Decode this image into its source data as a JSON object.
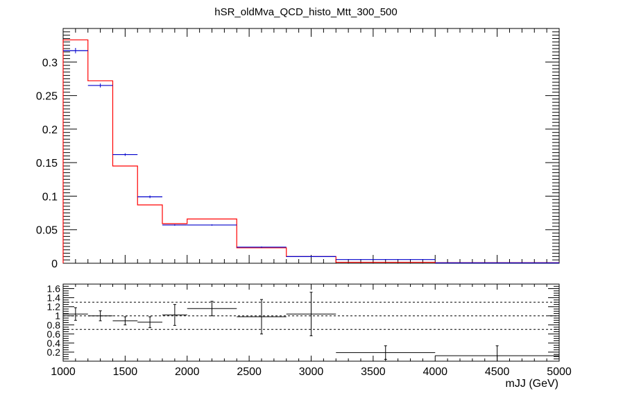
{
  "chart_data": [
    {
      "type": "histogram",
      "title": "hSR_oldMva_QCD_histo_Mtt_300_500",
      "xlim": [
        1000,
        5000
      ],
      "ylim": [
        0,
        0.35
      ],
      "ytick_labels": [
        "0",
        "0.05",
        "0.1",
        "0.15",
        "0.2",
        "0.25",
        "0.3"
      ],
      "ytick_values": [
        0,
        0.05,
        0.1,
        0.15,
        0.2,
        0.25,
        0.3
      ],
      "bin_edges": [
        1000,
        1200,
        1400,
        1600,
        1800,
        2000,
        2400,
        2800,
        3200,
        4000,
        5000
      ],
      "series": [
        {
          "color": "#ff0000",
          "style": "step",
          "values": [
            0.333,
            0.272,
            0.145,
            0.087,
            0.059,
            0.066,
            0.023,
            0.01,
            0.0015,
            0.0008
          ]
        },
        {
          "color": "#0000cc",
          "style": "points-with-xerr",
          "values": [
            0.317,
            0.265,
            0.162,
            0.099,
            0.057,
            0.057,
            0.024,
            0.01,
            0.0055,
            0.0005
          ],
          "errors": [
            0.004,
            0.003,
            0.002,
            0.002,
            0.001,
            0.001,
            0.001,
            0.001,
            0.0005,
            0.0003
          ]
        }
      ]
    },
    {
      "type": "ratio",
      "xlim": [
        1000,
        5000
      ],
      "ylim": [
        0,
        1.7
      ],
      "xlabel": "mJJ (GeV)",
      "xtick_labels": [
        "1000",
        "1500",
        "2000",
        "2500",
        "3000",
        "3500",
        "4000",
        "4500",
        "5000"
      ],
      "xtick_values": [
        1000,
        1500,
        2000,
        2500,
        3000,
        3500,
        4000,
        4500,
        5000
      ],
      "ytick_labels": [
        "0.2",
        "0.4",
        "0.6",
        "0.8",
        "1",
        "1.2",
        "1.4",
        "1.6"
      ],
      "ytick_values": [
        0.2,
        0.4,
        0.6,
        0.8,
        1.0,
        1.2,
        1.4,
        1.6
      ],
      "reference_lines": [
        0.7,
        1.0,
        1.3
      ],
      "bin_edges": [
        1000,
        1200,
        1400,
        1600,
        1800,
        2000,
        2400,
        2800,
        3200,
        4000,
        5000
      ],
      "values": [
        1.04,
        1.0,
        0.89,
        0.86,
        1.02,
        1.16,
        0.98,
        1.04,
        0.19,
        0.12
      ],
      "errors": [
        0.14,
        0.11,
        0.09,
        0.12,
        0.23,
        0.16,
        0.38,
        0.48,
        0.15,
        0.22
      ]
    }
  ]
}
